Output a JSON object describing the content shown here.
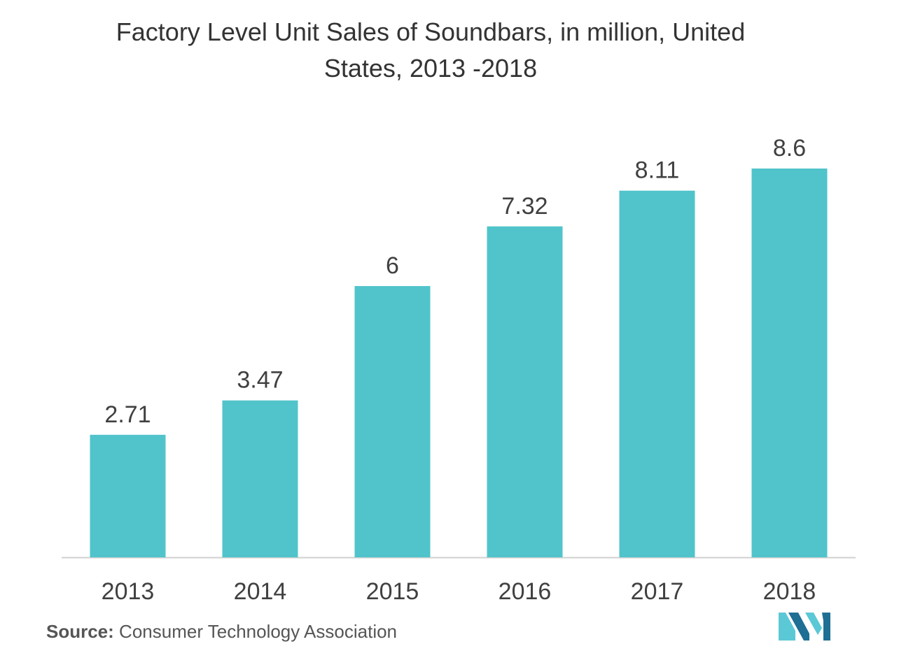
{
  "chart_data": {
    "type": "bar",
    "title_line1": "Factory Level Unit Sales of Soundbars, in million, United",
    "title_line2": "States, 2013 -2018",
    "categories": [
      "2013",
      "2014",
      "2015",
      "2016",
      "2017",
      "2018"
    ],
    "values": [
      2.71,
      3.47,
      6,
      7.32,
      8.11,
      8.6
    ],
    "value_labels": [
      "2.71",
      "3.47",
      "6",
      "7.32",
      "8.11",
      "8.6"
    ],
    "xlabel": "",
    "ylabel": "",
    "ylim": [
      0,
      8.6
    ],
    "grid": false,
    "colors": {
      "bar": "#50C4CA",
      "axis": "#D0D0D0",
      "text": "#404040"
    }
  },
  "source": {
    "label": "Source:",
    "text": "Consumer Technology Association"
  },
  "logo": {
    "icon": "mordor-intelligence-logo",
    "colors": {
      "dark": "#1F6E94",
      "light": "#5BC8D6"
    }
  }
}
